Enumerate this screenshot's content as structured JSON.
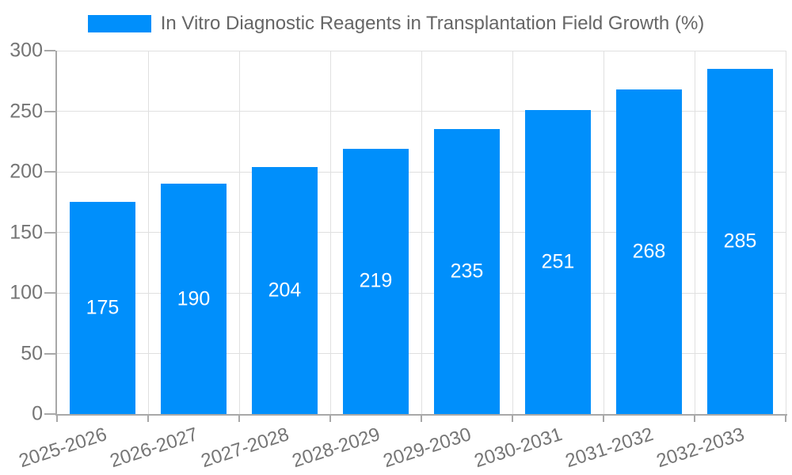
{
  "chart_data": {
    "type": "bar",
    "title": "In Vitro Diagnostic Reagents in Transplantation Field Growth (%)",
    "categories": [
      "2025-2026",
      "2026-2027",
      "2027-2028",
      "2028-2029",
      "2029-2030",
      "2030-2031",
      "2031-2032",
      "2032-2033"
    ],
    "series": [
      {
        "name": "In Vitro Diagnostic Reagents in Transplantation Field Growth (%)",
        "values": [
          175,
          190,
          204,
          219,
          235,
          251,
          268,
          285
        ]
      }
    ],
    "xlabel": "",
    "ylabel": "",
    "ylim": [
      0,
      300
    ],
    "yticks": [
      0,
      50,
      100,
      150,
      200,
      250,
      300
    ],
    "grid": true,
    "legend_position": "top",
    "x_label_rotation_deg": -18,
    "data_labels_visible": true,
    "colors": {
      "bar": "#008FFB",
      "bar_label": "#FFFFFF",
      "axis_text": "#757575",
      "legend_text": "#666666",
      "grid_line": "#E0E0E0",
      "axis_line": "#A8A8A8",
      "background": "#FFFFFF"
    }
  }
}
